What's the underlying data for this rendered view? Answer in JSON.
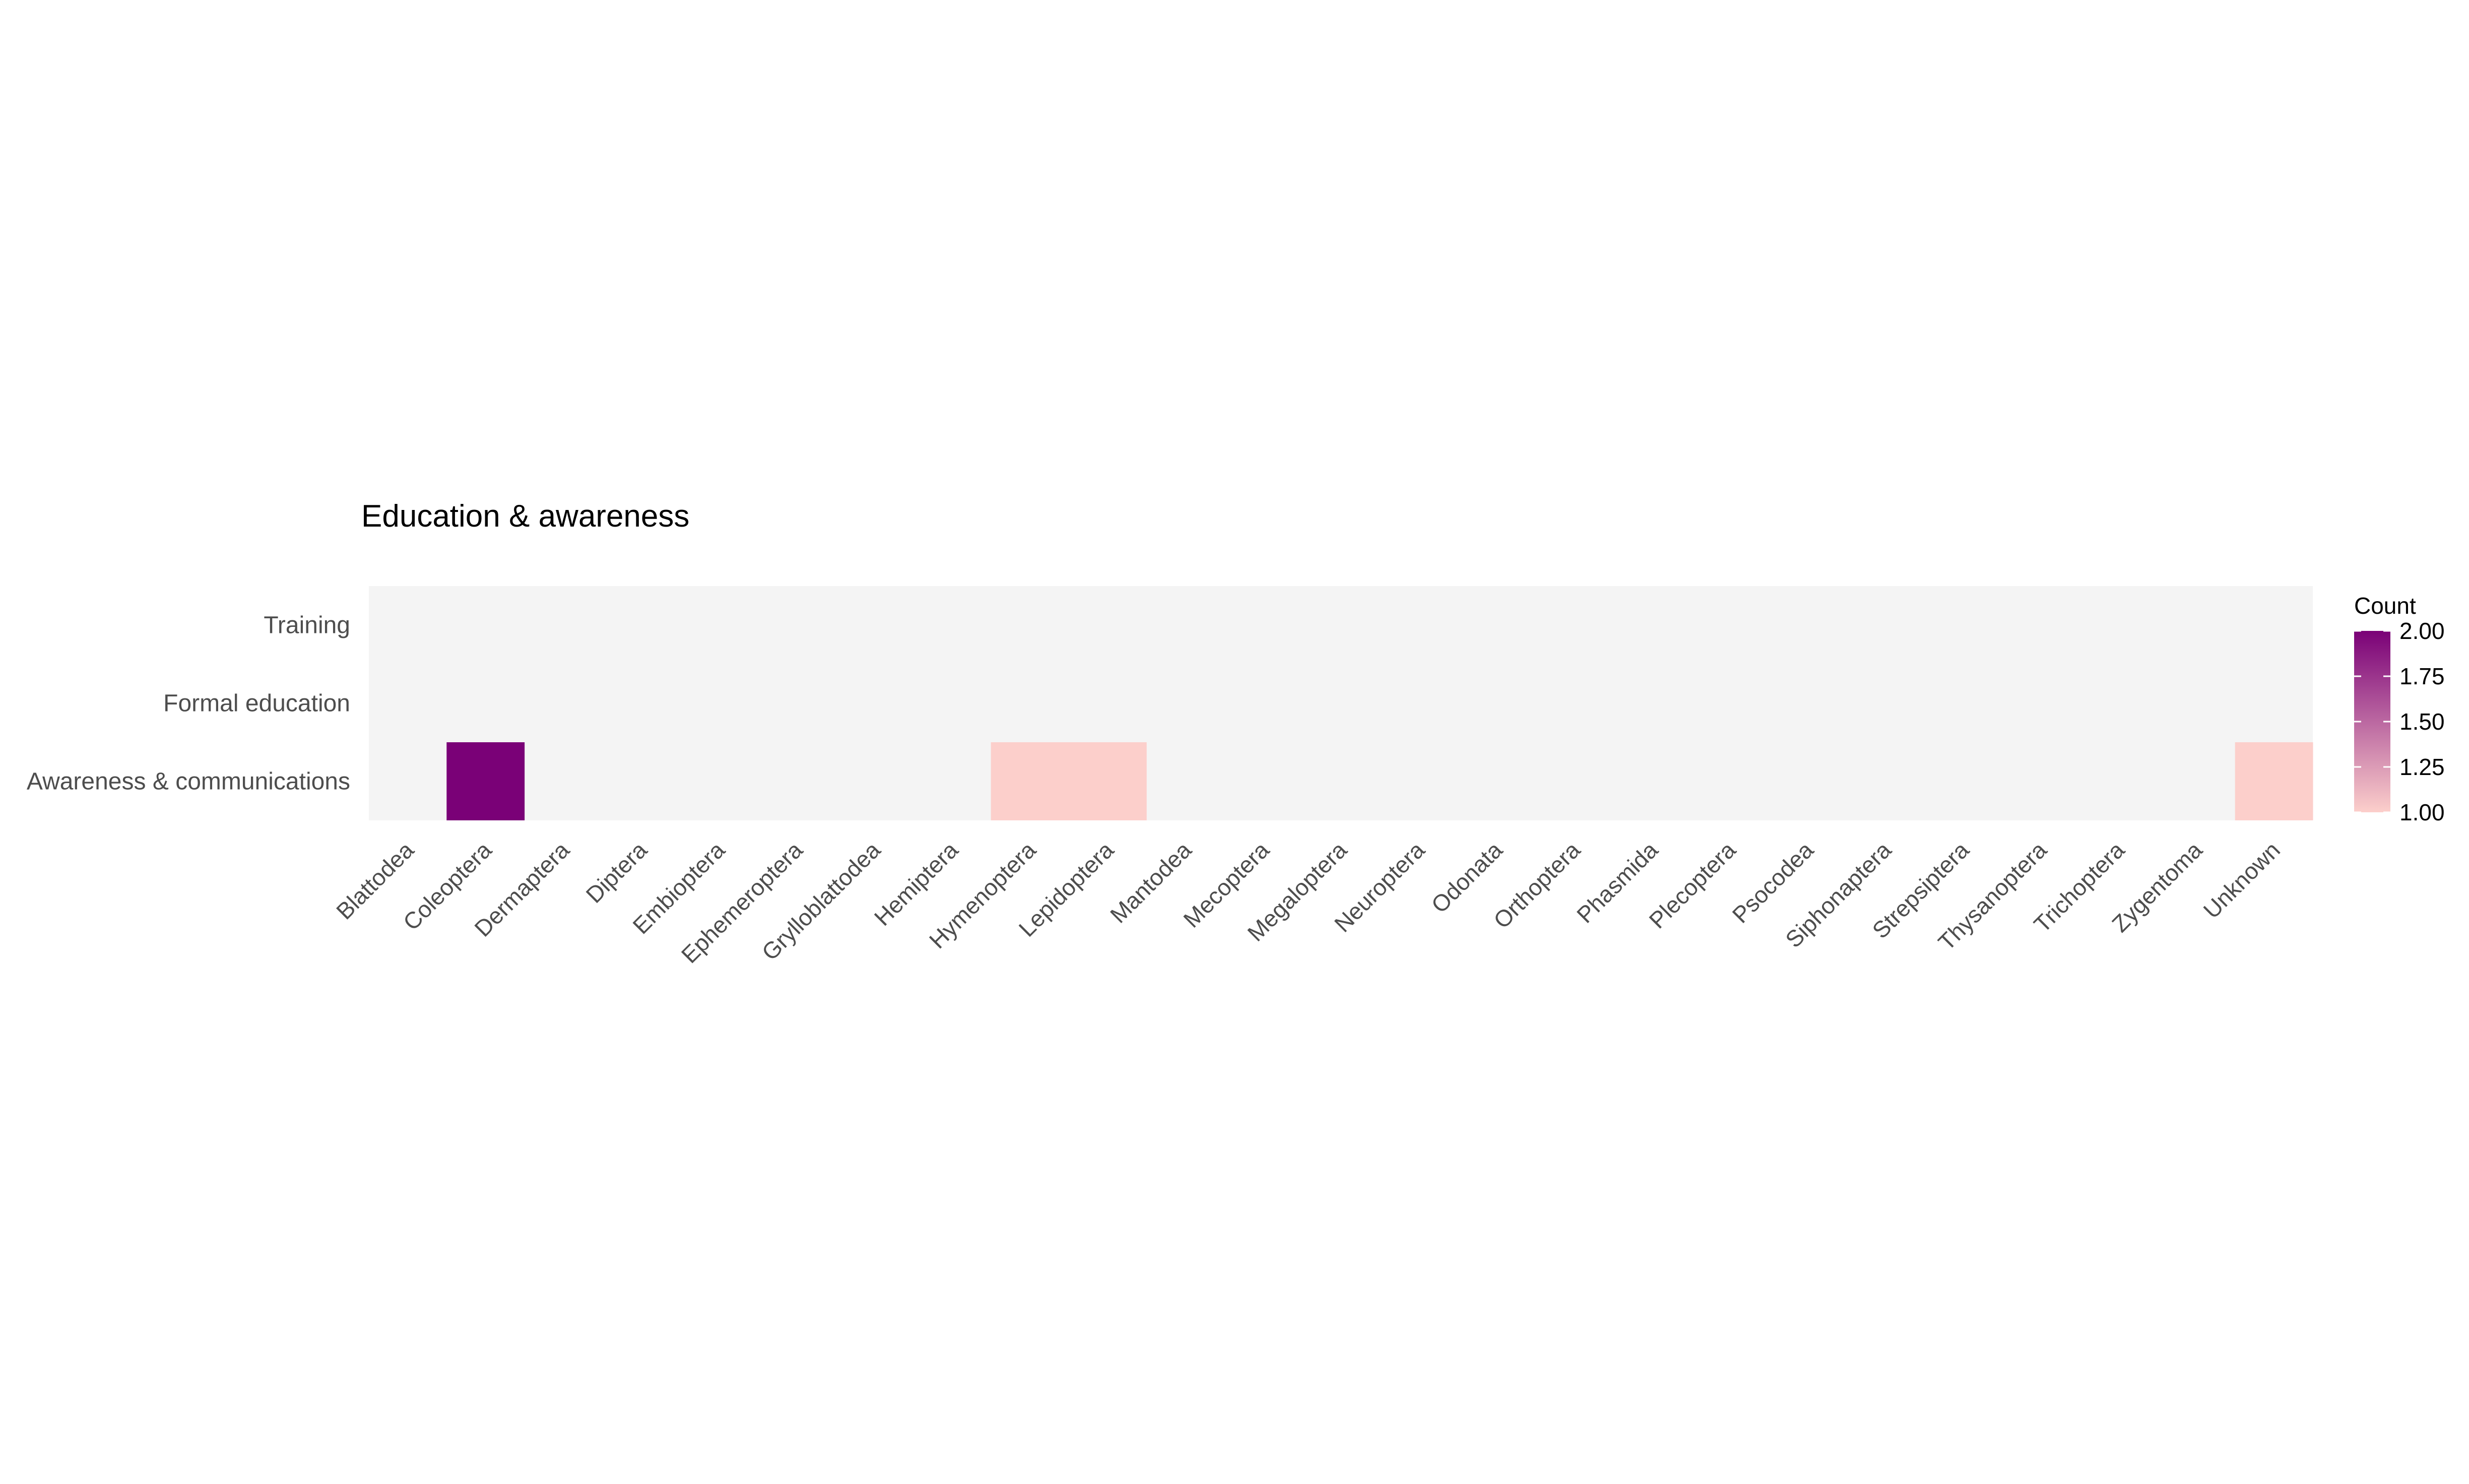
{
  "chart_data": {
    "type": "heatmap",
    "title": "Education & awareness",
    "x_categories": [
      "Blattodea",
      "Coleoptera",
      "Dermaptera",
      "Diptera",
      "Embioptera",
      "Ephemeroptera",
      "Grylloblattodea",
      "Hemiptera",
      "Hymenoptera",
      "Lepidoptera",
      "Mantodea",
      "Mecoptera",
      "Megaloptera",
      "Neuroptera",
      "Odonata",
      "Orthoptera",
      "Phasmida",
      "Plecoptera",
      "Psocodea",
      "Siphonaptera",
      "Strepsiptera",
      "Thysanoptera",
      "Trichoptera",
      "Zygentoma",
      "Unknown"
    ],
    "y_categories": [
      "Training",
      "Formal education",
      "Awareness & communications"
    ],
    "cells": [
      {
        "x": "Coleoptera",
        "y": "Awareness & communications",
        "value": 2
      },
      {
        "x": "Hymenoptera",
        "y": "Awareness & communications",
        "value": 1
      },
      {
        "x": "Lepidoptera",
        "y": "Awareness & communications",
        "value": 1
      },
      {
        "x": "Unknown",
        "y": "Awareness & communications",
        "value": 1
      }
    ],
    "legend": {
      "title": "Count",
      "ticks": [
        "2.00",
        "1.75",
        "1.50",
        "1.25",
        "1.00"
      ],
      "tick_values": [
        2.0,
        1.75,
        1.5,
        1.25,
        1.0
      ],
      "range": [
        1,
        2
      ],
      "low_color": "#FCCFCB",
      "high_color": "#7A0177",
      "placement": "right"
    },
    "panel_background": "#F4F4F4",
    "grid": false
  }
}
